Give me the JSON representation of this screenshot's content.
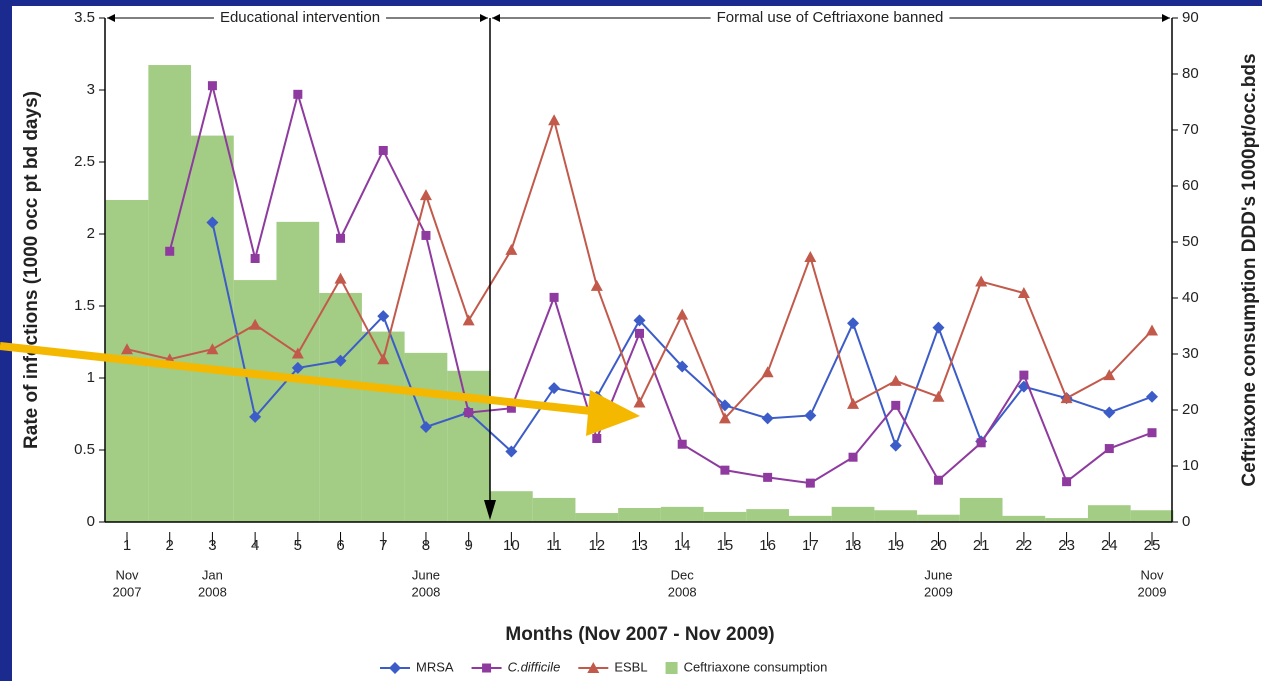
{
  "chart_data": {
    "type": "bar_line",
    "xlabel": "Months (Nov 2007 - Nov 2009)",
    "ylabel": "Rate of infections (1000 occ pt bd days)",
    "y2label": "Ceftriaxone consumption DDD's 1000pt/occ.bds",
    "annotations": [
      "Educational intervention",
      "Formal use of Ceftriaxone banned"
    ],
    "categories": [
      "1",
      "2",
      "3",
      "4",
      "5",
      "6",
      "7",
      "8",
      "9",
      "10",
      "11",
      "12",
      "13",
      "14",
      "15",
      "16",
      "17",
      "18",
      "19",
      "20",
      "21",
      "22",
      "23",
      "24",
      "25"
    ],
    "period_labels": [
      {
        "month": "Nov",
        "year": "2007"
      },
      null,
      {
        "month": "Jan",
        "year": "2008"
      },
      null,
      null,
      null,
      null,
      {
        "month": "June",
        "year": "2008"
      },
      null,
      null,
      null,
      null,
      null,
      {
        "month": "Dec",
        "year": "2008"
      },
      null,
      null,
      null,
      null,
      null,
      {
        "month": "June",
        "year": "2009"
      },
      null,
      null,
      null,
      null,
      {
        "month": "Nov",
        "year": "2009"
      }
    ],
    "series": [
      {
        "name": "MRSA",
        "color": "#3c5cc8",
        "marker": "diamond",
        "axis": "y",
        "values": [
          null,
          null,
          2.08,
          0.73,
          1.07,
          1.12,
          1.43,
          0.66,
          0.76,
          0.49,
          0.93,
          0.87,
          1.4,
          1.08,
          0.81,
          0.72,
          0.74,
          1.38,
          0.53,
          1.35,
          0.56,
          0.94,
          0.86,
          0.76,
          0.87
        ]
      },
      {
        "name": "C.difficile",
        "color": "#8e3a9e",
        "marker": "square",
        "axis": "y",
        "values": [
          null,
          1.88,
          3.03,
          1.83,
          2.97,
          1.97,
          2.58,
          1.99,
          0.76,
          0.79,
          1.56,
          0.58,
          1.31,
          0.54,
          0.36,
          0.31,
          0.27,
          0.45,
          0.81,
          0.29,
          0.55,
          1.02,
          0.28,
          0.51,
          0.62
        ]
      },
      {
        "name": "ESBL",
        "color": "#c25a4c",
        "marker": "triangle",
        "axis": "y",
        "values": [
          1.2,
          1.13,
          1.2,
          1.37,
          1.17,
          1.69,
          1.13,
          2.27,
          1.4,
          1.89,
          2.79,
          1.64,
          0.83,
          1.44,
          0.72,
          1.04,
          1.84,
          0.82,
          0.98,
          0.87,
          1.67,
          1.59,
          0.86,
          1.02,
          1.33
        ]
      },
      {
        "name": "Ceftriaxone consumption",
        "color": "#a3cc85",
        "marker": "bar",
        "axis": "y2",
        "values": [
          57.5,
          81.6,
          69,
          43.2,
          53.6,
          40.9,
          34,
          30.2,
          27,
          5.5,
          4.3,
          1.6,
          2.5,
          2.7,
          1.8,
          2.3,
          1.1,
          2.7,
          2.1,
          1.3,
          4.3,
          1.1,
          0.7,
          3,
          2.1
        ]
      }
    ],
    "ylim": [
      0,
      3.5
    ],
    "yticks": [
      0,
      0.5,
      1,
      1.5,
      2,
      2.5,
      3,
      3.5
    ],
    "y2lim": [
      0,
      90
    ],
    "y2ticks": [
      0,
      10,
      20,
      30,
      40,
      50,
      60,
      70,
      80,
      90
    ],
    "grid": false
  }
}
